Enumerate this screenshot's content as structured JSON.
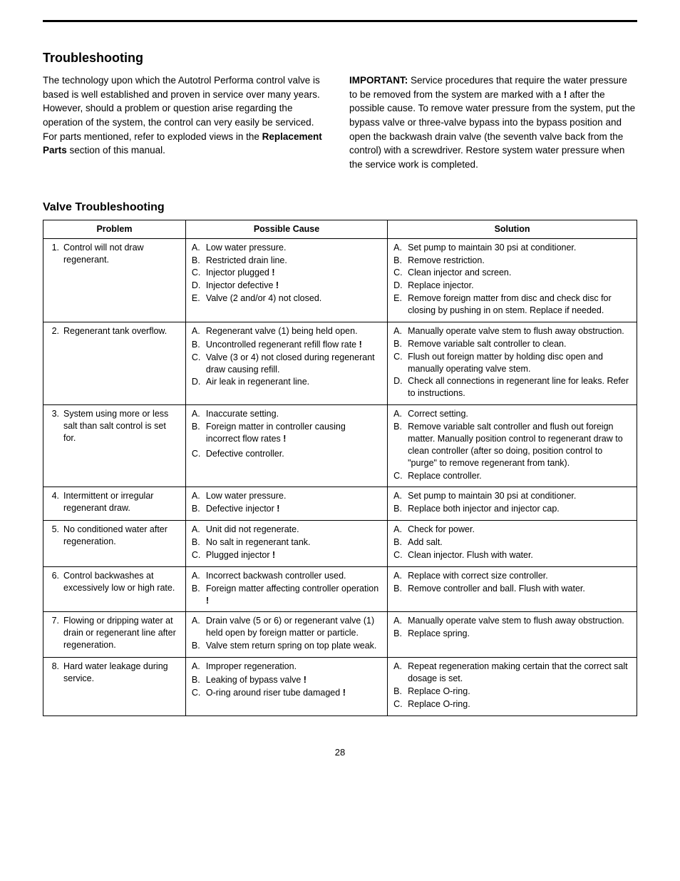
{
  "page_number": "28",
  "section_title": "Troubleshooting",
  "intro_left_parts": [
    {
      "t": "The technology upon which the Autotrol Performa control valve is based is well established and proven in service over many years. However, should a problem or question arise regarding the operation of the system, the control can very easily be serviced. For parts mentioned, refer to exploded views in the ",
      "b": false
    },
    {
      "t": "Replacement Parts",
      "b": true
    },
    {
      "t": " section of this manual.",
      "b": false
    }
  ],
  "intro_right_parts": [
    {
      "t": "IMPORTANT:",
      "b": true
    },
    {
      "t": " Service procedures that require the water pressure to be removed from the system are marked with a ",
      "b": false
    },
    {
      "t": "!",
      "b": true
    },
    {
      "t": " after the possible cause. To remove water pressure from the system, put the bypass valve or three-valve bypass into the bypass position and open the backwash drain valve (the seventh valve back from the control) with a screwdriver. Restore system water pressure when the service work is completed.",
      "b": false
    }
  ],
  "sub_title": "Valve Troubleshooting",
  "headers": {
    "problem": "Problem",
    "cause": "Possible Cause",
    "solution": "Solution"
  },
  "rows": [
    {
      "num": "1.",
      "problem": "Control will not draw regenerant.",
      "causes": [
        {
          "l": "A.",
          "t": "Low water pressure."
        },
        {
          "l": "B.",
          "t": "Restricted drain line."
        },
        {
          "l": "C.",
          "t": "Injector plugged !"
        },
        {
          "l": "D.",
          "t": "Injector defective !"
        },
        {
          "l": "E.",
          "t": "Valve (2 and/or 4) not closed."
        }
      ],
      "solutions": [
        {
          "l": "A.",
          "t": "Set pump to maintain 30 psi at conditioner."
        },
        {
          "l": "B.",
          "t": "Remove restriction."
        },
        {
          "l": "C.",
          "t": "Clean injector and screen."
        },
        {
          "l": "D.",
          "t": "Replace injector."
        },
        {
          "l": "E.",
          "t": "Remove foreign matter from disc and check disc for closing by pushing in on stem. Replace if needed."
        }
      ]
    },
    {
      "num": "2.",
      "problem": "Regenerant tank overflow.",
      "causes": [
        {
          "l": "A.",
          "t": "Regenerant valve (1) being held open."
        },
        {
          "l": "",
          "t": ""
        },
        {
          "l": "B.",
          "t": "Uncontrolled regenerant refill flow rate !"
        },
        {
          "l": "C.",
          "t": "Valve (3 or 4) not closed during regenerant draw causing refill."
        },
        {
          "l": "D.",
          "t": "Air leak in regenerant line."
        }
      ],
      "solutions": [
        {
          "l": "A.",
          "t": "Manually operate valve stem to flush away obstruction."
        },
        {
          "l": "B.",
          "t": "Remove variable salt controller to clean."
        },
        {
          "l": "C.",
          "t": "Flush out foreign matter by holding disc open and manually operating valve stem."
        },
        {
          "l": "D.",
          "t": "Check all connections in regenerant line for leaks. Refer to instructions."
        }
      ]
    },
    {
      "num": "3.",
      "problem": "System using more or less salt than salt control is set for.",
      "causes": [
        {
          "l": "A.",
          "t": "Inaccurate setting."
        },
        {
          "l": "B.",
          "t": "Foreign matter in controller causing incorrect flow rates !"
        },
        {
          "l": "",
          "t": ""
        },
        {
          "l": "",
          "t": ""
        },
        {
          "l": "",
          "t": ""
        },
        {
          "l": "C.",
          "t": "Defective controller."
        }
      ],
      "solutions": [
        {
          "l": "A.",
          "t": "Correct setting."
        },
        {
          "l": "B.",
          "t": "Remove variable salt controller and flush out foreign matter. Manually position control to regenerant draw to clean controller (after so doing, position control to \"purge\" to remove regenerant from tank)."
        },
        {
          "l": "C.",
          "t": "Replace controller."
        }
      ]
    },
    {
      "num": "4.",
      "problem": "Intermittent or irregular regenerant draw.",
      "causes": [
        {
          "l": "A.",
          "t": "Low water pressure."
        },
        {
          "l": "B.",
          "t": "Defective injector !"
        }
      ],
      "solutions": [
        {
          "l": "A.",
          "t": "Set pump to maintain 30 psi at conditioner."
        },
        {
          "l": "B.",
          "t": "Replace both injector and injector cap."
        }
      ]
    },
    {
      "num": "5.",
      "problem": "No conditioned water after regeneration.",
      "causes": [
        {
          "l": "A.",
          "t": "Unit did not regenerate."
        },
        {
          "l": "B.",
          "t": "No salt in regenerant tank."
        },
        {
          "l": "C.",
          "t": "Plugged injector !"
        }
      ],
      "solutions": [
        {
          "l": "A.",
          "t": "Check for power."
        },
        {
          "l": "B.",
          "t": "Add salt."
        },
        {
          "l": "C.",
          "t": "Clean injector. Flush with water."
        }
      ]
    },
    {
      "num": "6.",
      "problem": "Control backwashes at excessively low or high rate.",
      "causes": [
        {
          "l": "A.",
          "t": "Incorrect backwash controller used."
        },
        {
          "l": "B.",
          "t": "Foreign matter affecting controller operation !"
        }
      ],
      "solutions": [
        {
          "l": "A.",
          "t": "Replace with correct size controller."
        },
        {
          "l": "B.",
          "t": "Remove controller and ball. Flush with water."
        }
      ]
    },
    {
      "num": "7.",
      "problem": "Flowing or dripping water at drain or regenerant line after regeneration.",
      "causes": [
        {
          "l": "A.",
          "t": "Drain valve (5 or 6) or regenerant valve (1) held open by foreign matter or particle."
        },
        {
          "l": "B.",
          "t": "Valve stem return spring on top plate weak."
        }
      ],
      "solutions": [
        {
          "l": "A.",
          "t": "Manually operate valve stem to flush away obstruction."
        },
        {
          "l": "B.",
          "t": "Replace spring."
        }
      ]
    },
    {
      "num": "8.",
      "problem": "Hard water leakage during service.",
      "causes": [
        {
          "l": "A.",
          "t": "Improper regeneration."
        },
        {
          "l": "",
          "t": ""
        },
        {
          "l": "B.",
          "t": "Leaking of bypass valve !"
        },
        {
          "l": "C.",
          "t": "O-ring around riser tube damaged !"
        }
      ],
      "solutions": [
        {
          "l": "A.",
          "t": "Repeat regeneration making certain that the correct salt dosage is set."
        },
        {
          "l": "B.",
          "t": "Replace O-ring."
        },
        {
          "l": "C.",
          "t": "Replace O-ring."
        }
      ]
    }
  ]
}
